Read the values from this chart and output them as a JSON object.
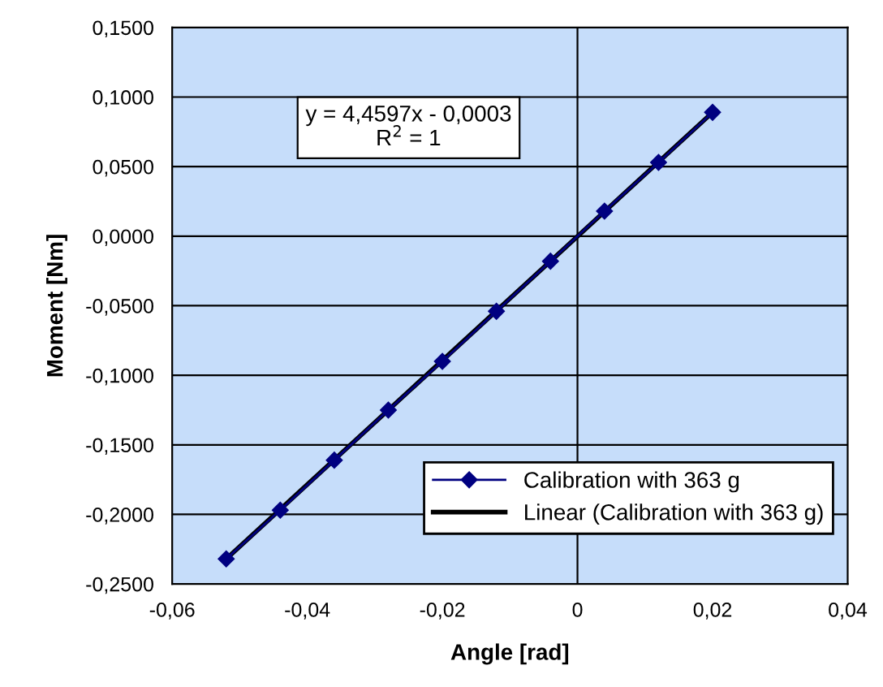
{
  "chart_data": {
    "type": "line",
    "xlabel": "Angle [rad]",
    "ylabel": "Moment [Nm]",
    "annotations": [
      "y = 4,4597x - 0,0003\nR$^{2}$ = 1"
    ],
    "x": [
      -0.052,
      -0.044,
      -0.036,
      -0.028,
      -0.02,
      -0.012,
      -0.004,
      0.004,
      0.012,
      0.02
    ],
    "series": [
      {
        "name": "Calibration with 363 g",
        "color": "#000080",
        "marker": "diamond",
        "values": [
          -0.232,
          -0.197,
          -0.161,
          -0.125,
          -0.09,
          -0.054,
          -0.018,
          0.018,
          0.053,
          0.089
        ]
      },
      {
        "name": "Linear (Calibration with 363 g)",
        "color": "#000000",
        "x": [
          -0.052,
          0.02
        ],
        "values": [
          -0.232,
          0.089
        ]
      }
    ],
    "xlim": [
      -0.06,
      0.04
    ],
    "xticks": [
      {
        "value": -0.06,
        "label": "-0,06"
      },
      {
        "value": -0.04,
        "label": "-0,04"
      },
      {
        "value": -0.02,
        "label": "-0,02"
      },
      0,
      {
        "value": 0.02,
        "label": "0,02"
      },
      {
        "value": 0.04,
        "label": "0,04"
      }
    ],
    "ylim": [
      -0.25,
      0.15
    ],
    "yticks": [
      {
        "value": -0.25,
        "label": "-0,2500"
      },
      {
        "value": -0.2,
        "label": "-0,2000"
      },
      {
        "value": -0.15,
        "label": "-0,1500"
      },
      {
        "value": -0.1,
        "label": "-0,1000"
      },
      {
        "value": -0.05,
        "label": "-0,0500"
      },
      {
        "value": 0,
        "label": "0,0000"
      },
      {
        "value": 0.05,
        "label": "0,0500"
      },
      {
        "value": 0.1,
        "label": "0,1000"
      },
      {
        "value": 0.15,
        "label": "0,1500"
      }
    ],
    "ref_lines": [
      {
        "axis": "x",
        "value": 0,
        "color": "#000000"
      }
    ],
    "grid": "y",
    "legend": "bottom right"
  }
}
